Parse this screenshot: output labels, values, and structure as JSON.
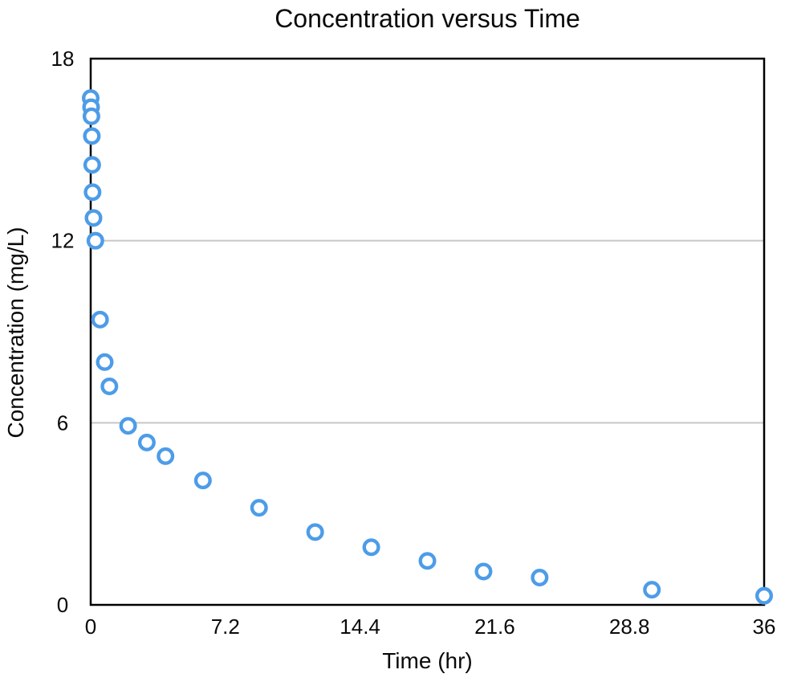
{
  "chart": {
    "title": "Concentration versus Time",
    "xlabel": "Time (hr)",
    "ylabel": "Concentration (mg/L)"
  },
  "colors": {
    "marker": "#4d9ce8",
    "marker_fill": "#ffffff",
    "axis": "#000000",
    "gridline": "#c7c7c7",
    "background": "#ffffff",
    "text": "#0a0a0a"
  },
  "chart_data": {
    "type": "scatter",
    "title": "Concentration versus Time",
    "xlabel": "Time (hr)",
    "ylabel": "Concentration (mg/L)",
    "xlim": [
      0,
      36
    ],
    "ylim": [
      0,
      18
    ],
    "x_ticks": [
      {
        "value": 0,
        "label": "0"
      },
      {
        "value": 7.2,
        "label": "7.2"
      },
      {
        "value": 14.4,
        "label": "14.4"
      },
      {
        "value": 21.6,
        "label": "21.6"
      },
      {
        "value": 28.8,
        "label": "28.8"
      },
      {
        "value": 36,
        "label": "36"
      }
    ],
    "y_ticks": [
      {
        "value": 0,
        "label": "0"
      },
      {
        "value": 6,
        "label": "6"
      },
      {
        "value": 12,
        "label": "12"
      },
      {
        "value": 18,
        "label": "18"
      }
    ],
    "gridlines_y": [
      6,
      12
    ],
    "grid": "horizontal-only",
    "legend": false,
    "marker": "open-circle",
    "series": [
      {
        "name": "Concentration",
        "points": [
          {
            "t": 0,
            "c": 16.7
          },
          {
            "t": 0.02,
            "c": 16.4
          },
          {
            "t": 0.04,
            "c": 16.1
          },
          {
            "t": 0.06,
            "c": 15.45
          },
          {
            "t": 0.08,
            "c": 14.5
          },
          {
            "t": 0.1,
            "c": 13.6
          },
          {
            "t": 0.15,
            "c": 12.75
          },
          {
            "t": 0.25,
            "c": 12.0
          },
          {
            "t": 0.5,
            "c": 9.4
          },
          {
            "t": 0.75,
            "c": 8.0
          },
          {
            "t": 1,
            "c": 7.2
          },
          {
            "t": 2,
            "c": 5.9
          },
          {
            "t": 3,
            "c": 5.35
          },
          {
            "t": 4,
            "c": 4.9
          },
          {
            "t": 6,
            "c": 4.1
          },
          {
            "t": 9,
            "c": 3.2
          },
          {
            "t": 12,
            "c": 2.4
          },
          {
            "t": 15,
            "c": 1.9
          },
          {
            "t": 18,
            "c": 1.45
          },
          {
            "t": 21,
            "c": 1.1
          },
          {
            "t": 24,
            "c": 0.9
          },
          {
            "t": 30,
            "c": 0.5
          },
          {
            "t": 36,
            "c": 0.3
          }
        ]
      }
    ]
  }
}
